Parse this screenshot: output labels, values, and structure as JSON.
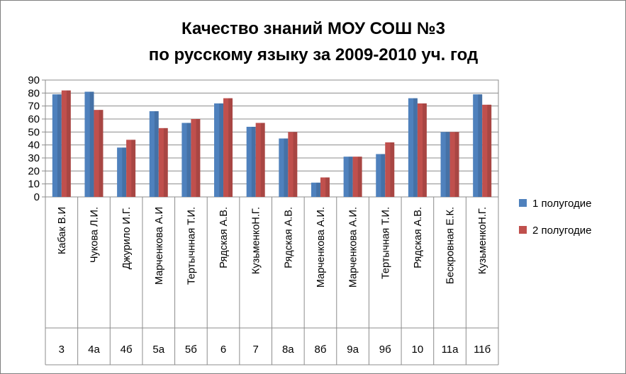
{
  "chart_data": {
    "type": "bar",
    "title": [
      "Качество знаний МОУ СОШ №3",
      "по русскому языку  за 2009-2010 уч. год"
    ],
    "categories": [
      {
        "teacher": "Кабак В.И",
        "class": "3"
      },
      {
        "teacher": "Чукова Л.И.",
        "class": "4а"
      },
      {
        "teacher": "Джурило И.Г.",
        "class": "4б"
      },
      {
        "teacher": "Марченкова А.И",
        "class": "5а"
      },
      {
        "teacher": "Тертычнная Т.И.",
        "class": "5б"
      },
      {
        "teacher": "Рядская А.В.",
        "class": "6"
      },
      {
        "teacher": "КузьменкоН.Г.",
        "class": "7"
      },
      {
        "teacher": "Рядская А.В.",
        "class": "8а"
      },
      {
        "teacher": "Марченкова А.И.",
        "class": "8б"
      },
      {
        "teacher": "Марченкова А.И.",
        "class": "9а"
      },
      {
        "teacher": "Тертычная Т.И.",
        "class": "9б"
      },
      {
        "teacher": "Рядская А.В.",
        "class": "10"
      },
      {
        "teacher": "Бескровная Е.К.",
        "class": "11а"
      },
      {
        "teacher": "КузьменкоН.Г.",
        "class": "11б"
      }
    ],
    "series": [
      {
        "name": "1 полугодие",
        "color": "#4f81bd",
        "values": [
          79,
          81,
          38,
          66,
          57,
          72,
          54,
          45,
          11,
          31,
          33,
          76,
          50,
          79
        ]
      },
      {
        "name": "2 полугодие",
        "color": "#c0504d",
        "values": [
          82,
          67,
          44,
          53,
          60,
          76,
          57,
          50,
          15,
          31,
          42,
          72,
          50,
          71
        ]
      }
    ],
    "ylim": [
      0,
      90
    ],
    "yticks": [
      0,
      10,
      20,
      30,
      40,
      50,
      60,
      70,
      80,
      90
    ],
    "grid": true,
    "legend_position": "right"
  }
}
